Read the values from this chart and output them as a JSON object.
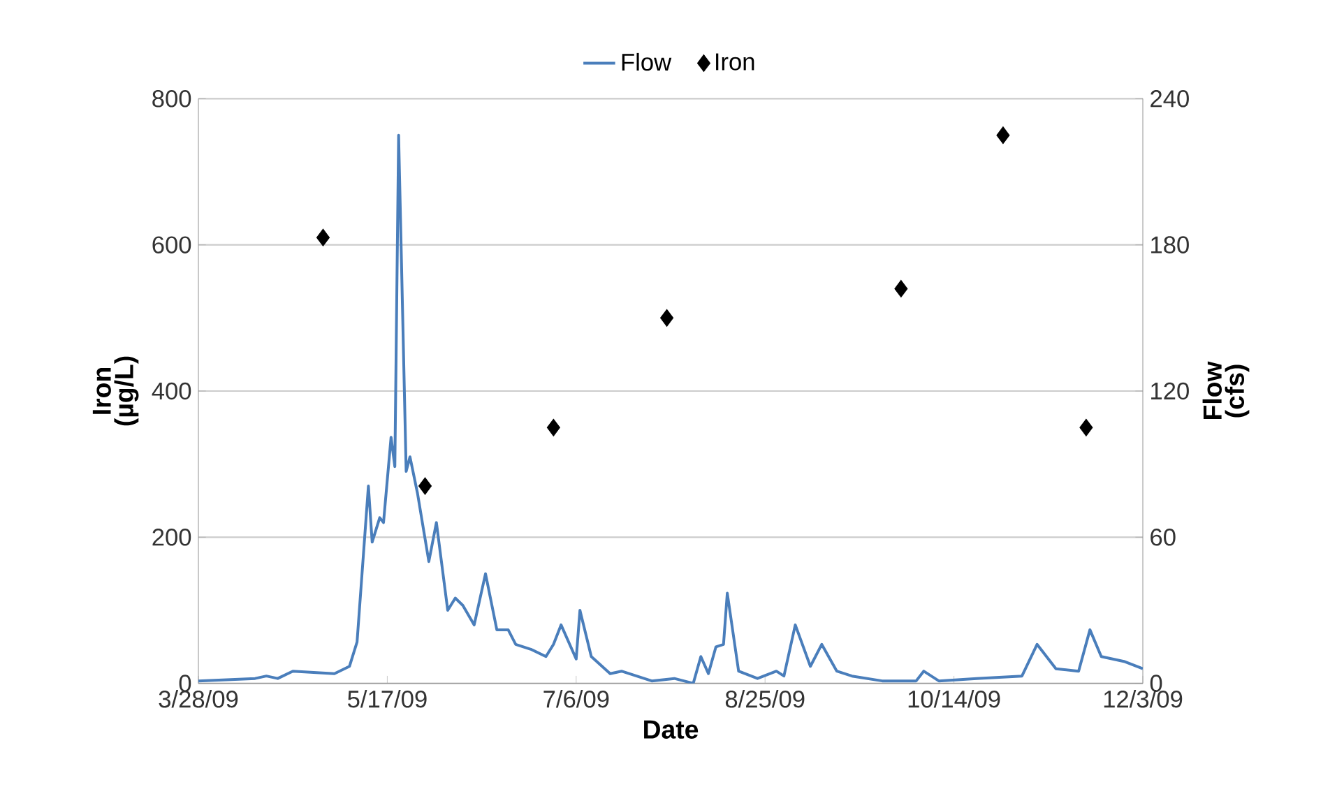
{
  "chart_data": {
    "type": "line",
    "xlabel": "Date",
    "ylabel": "Iron (µg/L)",
    "y2label": "Flow (cfs)",
    "xlim": [
      "2009-03-28",
      "2009-12-03"
    ],
    "xticks": [
      {
        "value": "2009-03-28",
        "label": "3/28/09"
      },
      {
        "value": "2009-05-17",
        "label": "5/17/09"
      },
      {
        "value": "2009-07-06",
        "label": "7/6/09"
      },
      {
        "value": "2009-08-25",
        "label": "8/25/09"
      },
      {
        "value": "2009-10-14",
        "label": "10/14/09"
      },
      {
        "value": "2009-12-03",
        "label": "12/3/09"
      }
    ],
    "ylim": [
      0,
      800
    ],
    "yticks": [
      0,
      200,
      400,
      600,
      800
    ],
    "y2lim": [
      0,
      240
    ],
    "y2ticks": [
      0,
      60,
      120,
      180,
      240
    ],
    "grid": "y",
    "legend": "top",
    "series": [
      {
        "name": "Flow",
        "axis": "y2",
        "color": "#4a7ebb",
        "marker": "none",
        "line_style": "solid",
        "x": [
          "2009-03-28",
          "2009-04-12",
          "2009-04-15",
          "2009-04-18",
          "2009-04-22",
          "2009-05-03",
          "2009-05-07",
          "2009-05-09",
          "2009-05-12",
          "2009-05-13",
          "2009-05-15",
          "2009-05-16",
          "2009-05-18",
          "2009-05-19",
          "2009-05-20",
          "2009-05-22",
          "2009-05-23",
          "2009-05-25",
          "2009-05-28",
          "2009-05-30",
          "2009-06-02",
          "2009-06-04",
          "2009-06-06",
          "2009-06-09",
          "2009-06-12",
          "2009-06-15",
          "2009-06-18",
          "2009-06-20",
          "2009-06-24",
          "2009-06-28",
          "2009-06-30",
          "2009-07-02",
          "2009-07-06",
          "2009-07-07",
          "2009-07-10",
          "2009-07-15",
          "2009-07-18",
          "2009-07-26",
          "2009-08-01",
          "2009-08-06",
          "2009-08-08",
          "2009-08-10",
          "2009-08-12",
          "2009-08-14",
          "2009-08-15",
          "2009-08-18",
          "2009-08-23",
          "2009-08-28",
          "2009-08-30",
          "2009-09-02",
          "2009-09-06",
          "2009-09-09",
          "2009-09-13",
          "2009-09-17",
          "2009-09-25",
          "2009-10-04",
          "2009-10-06",
          "2009-10-10",
          "2009-10-20",
          "2009-11-01",
          "2009-11-05",
          "2009-11-10",
          "2009-11-16",
          "2009-11-19",
          "2009-11-22",
          "2009-11-28",
          "2009-12-03"
        ],
        "values": [
          1,
          2,
          3,
          2,
          5,
          4,
          7,
          17,
          81,
          58,
          68,
          66,
          101,
          89,
          225,
          87,
          93,
          78,
          50,
          66,
          30,
          35,
          32,
          24,
          45,
          22,
          22,
          16,
          14,
          11,
          16,
          24,
          10,
          30,
          11,
          4,
          5,
          1,
          2,
          0,
          11,
          4,
          15,
          16,
          37,
          5,
          2,
          5,
          3,
          24,
          7,
          16,
          5,
          3,
          1,
          1,
          5,
          1,
          2,
          3,
          16,
          6,
          5,
          22,
          11,
          9,
          6
        ]
      },
      {
        "name": "Iron",
        "type": "scatter",
        "axis": "y",
        "color": "#000000",
        "marker": "diamond",
        "line_style": "none",
        "x": [
          "2009-04-30",
          "2009-05-27",
          "2009-06-30",
          "2009-07-30",
          "2009-09-30",
          "2009-10-27",
          "2009-11-18"
        ],
        "values": [
          610,
          270,
          350,
          500,
          540,
          750,
          350
        ]
      }
    ]
  }
}
